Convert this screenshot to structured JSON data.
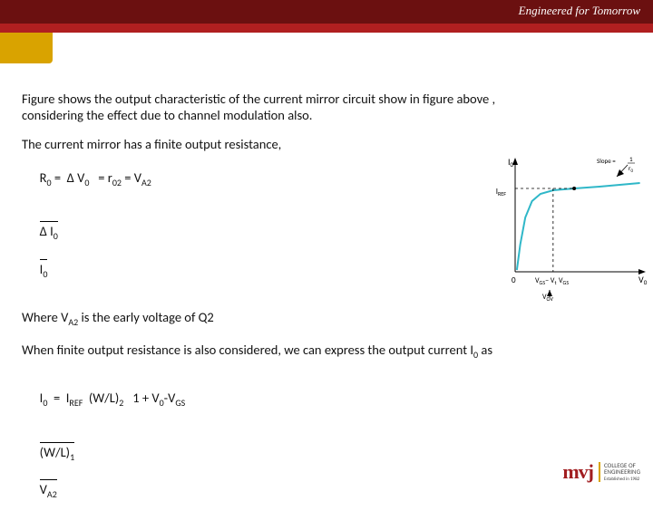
{
  "header": {
    "brand_tagline": "Engineered for Tomorrow",
    "topbar_color": "#6b1010",
    "redstrip_color": "#b01f20",
    "goldtab_color": "#d9a300"
  },
  "text": {
    "p1": "Figure shows the output characteristic of the current  mirror circuit show in figure above , considering the effect due to channel modulation also.",
    "p2": "The current mirror has a finite output resistance,",
    "eq_r0_left": "R",
    "eq_r0_sub": "0",
    "eq_eq": " =  Δ V",
    "eq_v0_sub": "0",
    "eq_mid": "   = r",
    "eq_r02_sub": "02",
    "eq_mid2": " = V",
    "eq_va2_sub": "A2",
    "eq_frac_di": "Δ I",
    "eq_frac_di_sub": "0",
    "eq_frac_i": "I",
    "eq_frac_i_sub": "0",
    "p3a": "Where V",
    "p3a_sub": "A2",
    "p3b": " is the early voltage of Q2",
    "p4": "When finite output resistance is also considered, we can express the output current I",
    "p4_sub": "0",
    "p4b": " as",
    "eq2_i0": "I",
    "eq2_i0_sub": "0",
    "eq2_eq": "  =  I",
    "eq2_iref_sub": "REF",
    "eq2_sp": "  (W/L)",
    "eq2_wl2_sub": "2",
    "eq2_br": "   1 + V",
    "eq2_v0_sub": "0",
    "eq2_minus": "-V",
    "eq2_vgs_sub": "GS",
    "eq2_den_wl": "(W/L)",
    "eq2_wl1_sub": "1",
    "eq2_den_va": "V",
    "eq2_den_va_sub": "A2"
  },
  "chart": {
    "type": "line",
    "background_color": "#ffffff",
    "axis_color": "#000000",
    "curve_color": "#2fb7c8",
    "curve_width": 2,
    "dash_color": "#000000",
    "x_label": "V",
    "x_label_sub": "0",
    "y_label": "I",
    "y_label_sub": "0",
    "iref_label": "I",
    "iref_sub": "REF",
    "vgs_label": "V",
    "vgs_sub": "GS",
    "vov_label": "V",
    "vov_sub": "OV",
    "vgs_minus_vt": "− V",
    "vgs_minus_vt_sub": "t",
    "slope_label": "Slope = ",
    "slope_frac_top": "1",
    "slope_frac_bot": "r",
    "slope_frac_bot_sub": "0",
    "xlim": [
      0,
      150
    ],
    "ylim": [
      0,
      120
    ],
    "curve_points": [
      [
        2,
        118
      ],
      [
        6,
        90
      ],
      [
        12,
        60
      ],
      [
        20,
        42
      ],
      [
        30,
        34
      ],
      [
        45,
        30
      ],
      [
        70,
        28
      ],
      [
        100,
        26
      ],
      [
        148,
        22
      ]
    ],
    "iref_y": 28,
    "vgs_x": 45,
    "dot_x": 70,
    "vt_x": 30
  },
  "logo": {
    "mark": "mvj",
    "line1": "COLLEGE OF",
    "line2": "ENGINEERING",
    "tag": "Established in 1982"
  }
}
